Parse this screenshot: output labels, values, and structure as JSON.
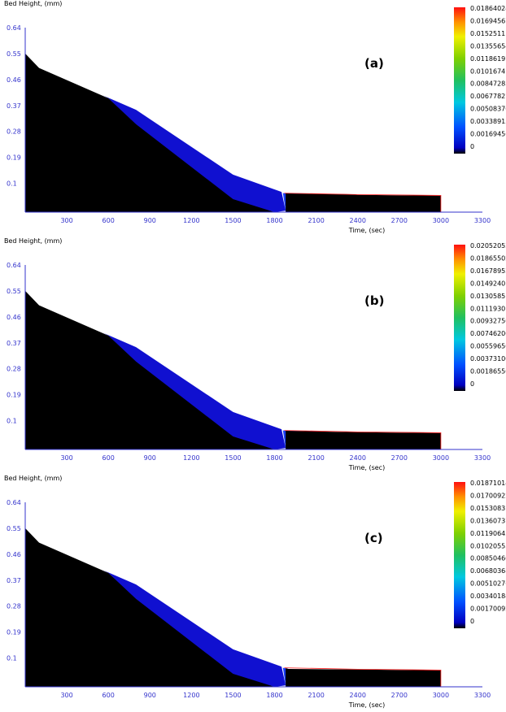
{
  "chart_data": [
    {
      "type": "area",
      "panel_label": "(a)",
      "ylabel": "Bed Height, (mm)",
      "xlabel": "Time, (sec)",
      "xlim": [
        0,
        3300
      ],
      "ylim": [
        0,
        0.64
      ],
      "xticks": [
        "300",
        "600",
        "900",
        "1200",
        "1500",
        "1800",
        "2100",
        "2400",
        "2700",
        "3000",
        "3300"
      ],
      "yticks": [
        "0.64",
        "0.55",
        "0.46",
        "0.37",
        "0.28",
        "0.19",
        "0.1"
      ],
      "colorbar": {
        "labels": [
          "0.01864024",
          "0.01694567",
          "0.01525111",
          "0.01355654",
          "0.01186197",
          "0.0101674",
          "0.00847283",
          "0.00677827",
          "0.00508370",
          "0.00338913",
          "0.00169456",
          "0"
        ],
        "min": 0,
        "max": 0.01864024
      },
      "bed_profile": {
        "time": [
          0,
          100,
          600,
          800,
          1500,
          1850,
          1870,
          2400,
          3000
        ],
        "height": [
          0.55,
          0.5,
          0.4,
          0.35,
          0.13,
          0.065,
          0.065,
          0.06,
          0.055
        ]
      },
      "colors": {
        "background": "#000000",
        "low": "#1010d0",
        "mid": "#00c8b0",
        "high": "#ff1a00",
        "profile_line": "#ff2020"
      }
    },
    {
      "type": "area",
      "panel_label": "(b)",
      "ylabel": "Bed Height, (mm)",
      "xlabel": "Time, (sec)",
      "xlim": [
        0,
        3300
      ],
      "ylim": [
        0,
        0.64
      ],
      "xticks": [
        "300",
        "600",
        "900",
        "1200",
        "1500",
        "1800",
        "2100",
        "2400",
        "2700",
        "3000",
        "3300"
      ],
      "yticks": [
        "0.64",
        "0.55",
        "0.46",
        "0.37",
        "0.28",
        "0.19",
        "0.1"
      ],
      "colorbar": {
        "labels": [
          "0.02052052",
          "0.01865502",
          "0.01678952",
          "0.01492401",
          "0.01305851",
          "0.01119301",
          "0.00932750",
          "0.00746200",
          "0.00559650",
          "0.00373100",
          "0.00186550",
          "0"
        ],
        "min": 0,
        "max": 0.02052052
      },
      "bed_profile": {
        "time": [
          0,
          100,
          600,
          800,
          1500,
          1850,
          1870,
          2400,
          3000
        ],
        "height": [
          0.55,
          0.5,
          0.4,
          0.35,
          0.13,
          0.065,
          0.065,
          0.06,
          0.055
        ]
      },
      "colors": {
        "background": "#000000",
        "low": "#1010d0",
        "mid": "#00c8b0",
        "high": "#ff1a00",
        "profile_line": "#ff2020"
      }
    },
    {
      "type": "area",
      "panel_label": "(c)",
      "ylabel": "Bed Height, (mm)",
      "xlabel": "Time, (sec)",
      "xlim": [
        0,
        3300
      ],
      "ylim": [
        0,
        0.64
      ],
      "xticks": [
        "300",
        "600",
        "900",
        "1200",
        "1500",
        "1800",
        "2100",
        "2400",
        "2700",
        "3000",
        "3300"
      ],
      "yticks": [
        "0.64",
        "0.55",
        "0.46",
        "0.37",
        "0.28",
        "0.19",
        "0.1"
      ],
      "colorbar": {
        "labels": [
          "0.01871014",
          "0.01700922",
          "0.0153083",
          "0.01360737",
          "0.01190645",
          "0.01020553",
          "0.00850460",
          "0.00680368",
          "0.00510276",
          "0.00340184",
          "0.00170092",
          "0"
        ],
        "min": 0,
        "max": 0.01871014
      },
      "bed_profile": {
        "time": [
          0,
          100,
          600,
          800,
          1500,
          1850,
          1870,
          2400,
          3000
        ],
        "height": [
          0.55,
          0.5,
          0.4,
          0.35,
          0.13,
          0.065,
          0.065,
          0.06,
          0.055
        ]
      },
      "colors": {
        "background": "#000000",
        "low": "#1010d0",
        "mid": "#00c8b0",
        "high": "#ff1a00",
        "profile_line": "#ff2020"
      }
    }
  ]
}
